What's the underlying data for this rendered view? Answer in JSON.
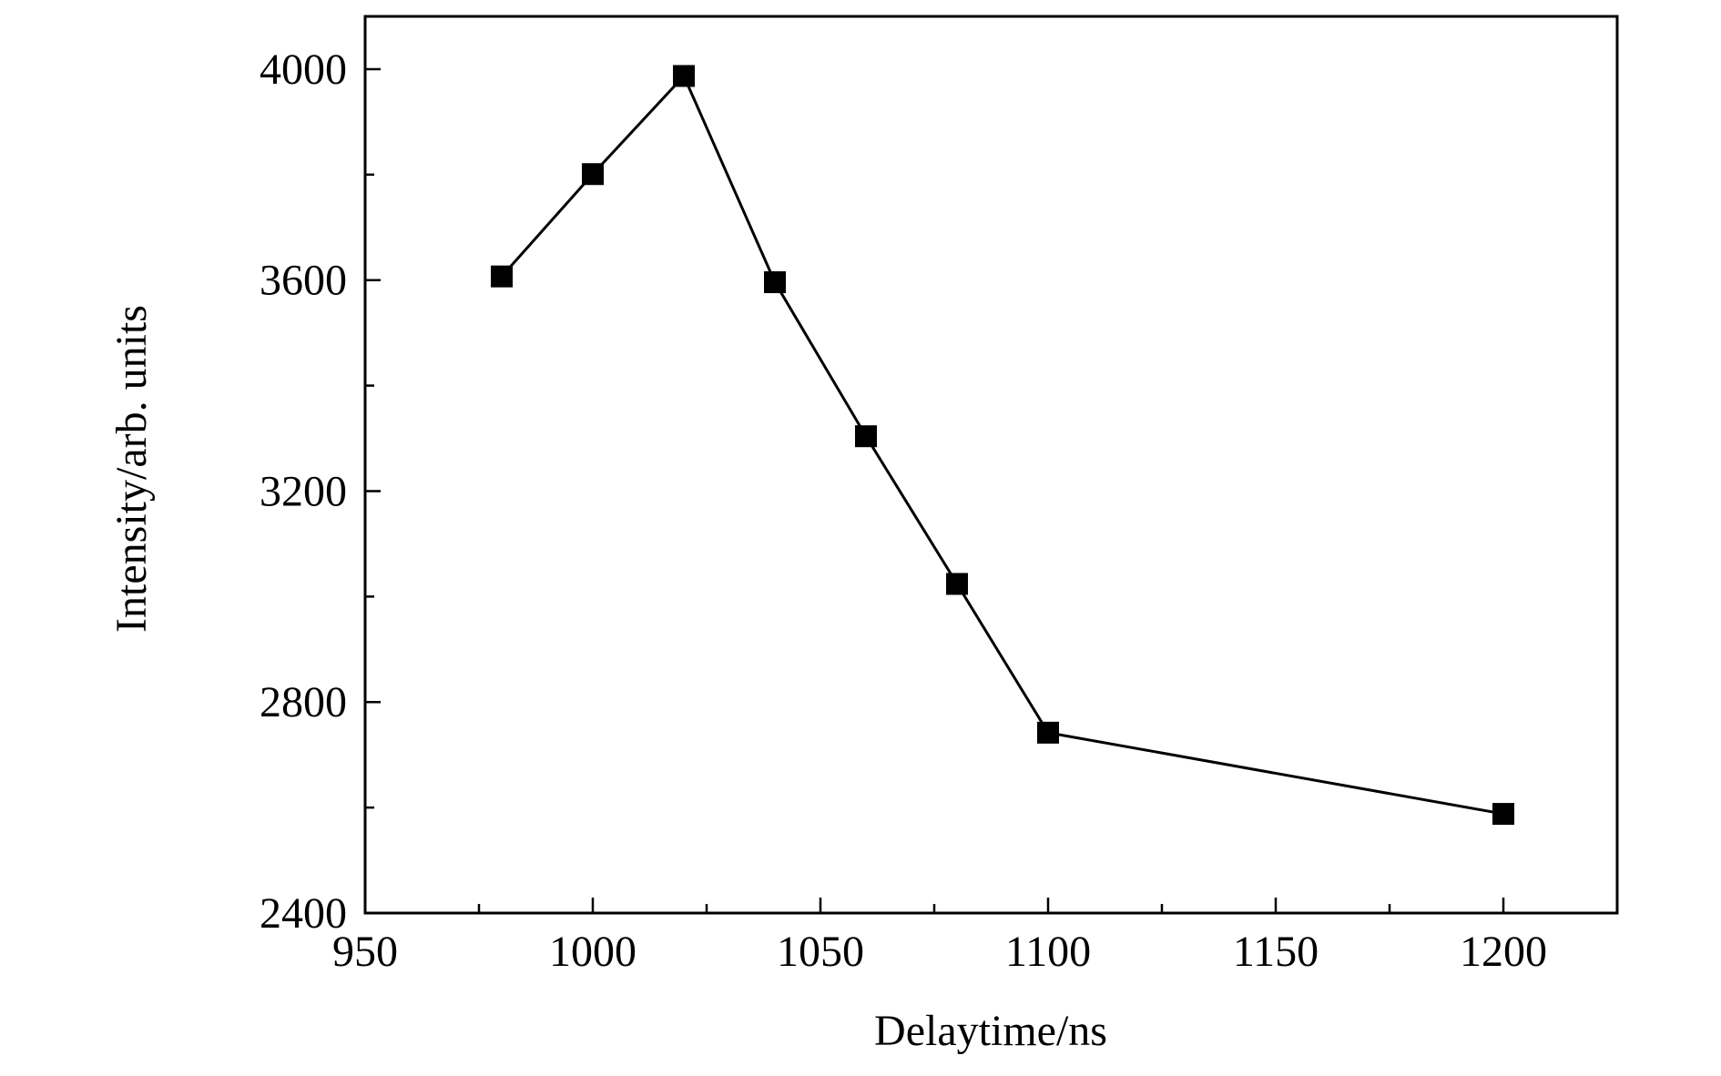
{
  "chart_data": {
    "type": "line",
    "x_label": "Delaytime/ns",
    "y_label": "Intensity/arb. units",
    "x": [
      980,
      1000,
      1020,
      1040,
      1060,
      1080,
      1100,
      1200
    ],
    "series": [
      {
        "color": "#000000",
        "marker": "square",
        "values": [
          3607,
          3801,
          3987,
          3596,
          3304,
          3024,
          2742,
          2588
        ]
      }
    ],
    "xlim": [
      950,
      1225
    ],
    "ylim": [
      2400,
      4100
    ],
    "xticks": [
      950,
      1000,
      1050,
      1100,
      1150,
      1200
    ],
    "yticks": [
      2400,
      2800,
      3200,
      3600,
      4000
    ],
    "xminorticks": [
      975,
      1025,
      1075,
      1125,
      1175
    ],
    "yminorticks": [
      2600,
      3000,
      3400,
      3800
    ]
  }
}
